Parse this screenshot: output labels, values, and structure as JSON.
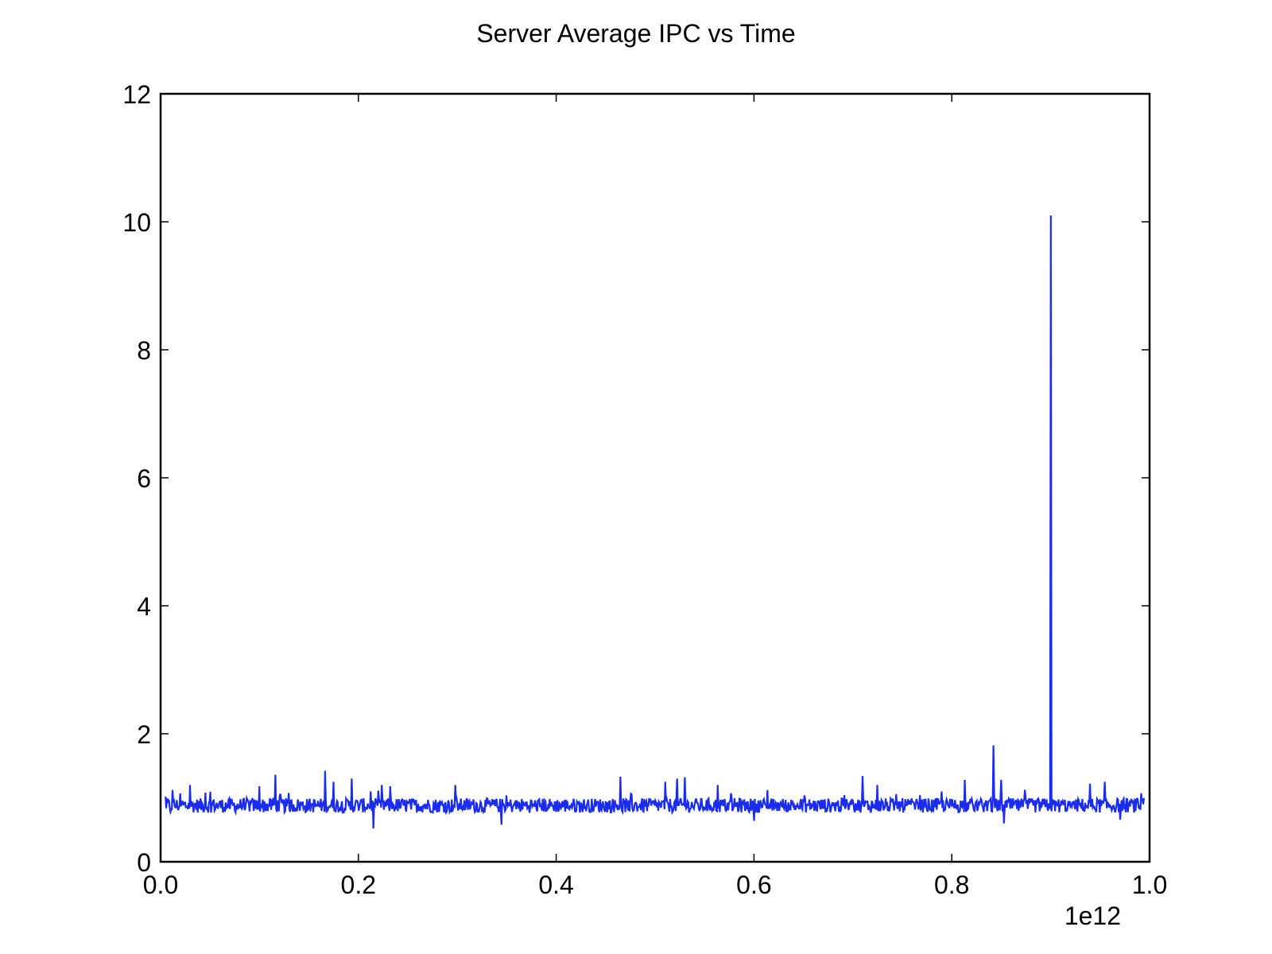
{
  "chart_data": {
    "type": "line",
    "title": "Server Average IPC vs Time",
    "xlabel": "",
    "ylabel": "",
    "x_offset_label": "1e12",
    "xlim": [
      0.0,
      1.0
    ],
    "ylim": [
      0,
      12
    ],
    "x_ticks": [
      "0.0",
      "0.2",
      "0.4",
      "0.6",
      "0.8",
      "1.0"
    ],
    "y_ticks": [
      "0",
      "2",
      "4",
      "6",
      "8",
      "10",
      "12"
    ],
    "grid": false,
    "legend": "none",
    "colors": {
      "series": "#1a2cf0",
      "axes": "#000000"
    },
    "series": [
      {
        "baseline": 0.88,
        "noise_range": [
          0.75,
          1.0
        ],
        "x_range": [
          0.005,
          0.995
        ],
        "spikes": [
          {
            "x": 0.005,
            "y": 1.02
          },
          {
            "x": 0.012,
            "y": 1.12
          },
          {
            "x": 0.03,
            "y": 1.2
          },
          {
            "x": 0.045,
            "y": 1.08
          },
          {
            "x": 0.1,
            "y": 1.18
          },
          {
            "x": 0.116,
            "y": 1.36
          },
          {
            "x": 0.166,
            "y": 1.42
          },
          {
            "x": 0.175,
            "y": 1.25
          },
          {
            "x": 0.193,
            "y": 1.3
          },
          {
            "x": 0.212,
            "y": 1.1
          },
          {
            "x": 0.224,
            "y": 1.2
          },
          {
            "x": 0.232,
            "y": 1.18
          },
          {
            "x": 0.298,
            "y": 1.2
          },
          {
            "x": 0.345,
            "y": 1.12
          },
          {
            "x": 0.465,
            "y": 1.33
          },
          {
            "x": 0.51,
            "y": 1.25
          },
          {
            "x": 0.522,
            "y": 1.3
          },
          {
            "x": 0.53,
            "y": 1.32
          },
          {
            "x": 0.563,
            "y": 1.2
          },
          {
            "x": 0.6,
            "y": 1.3
          },
          {
            "x": 0.71,
            "y": 1.34
          },
          {
            "x": 0.725,
            "y": 1.2
          },
          {
            "x": 0.79,
            "y": 1.1
          },
          {
            "x": 0.813,
            "y": 1.28
          },
          {
            "x": 0.842,
            "y": 1.82
          },
          {
            "x": 0.85,
            "y": 1.28
          },
          {
            "x": 0.9,
            "y": 10.1
          },
          {
            "x": 0.94,
            "y": 1.22
          },
          {
            "x": 0.955,
            "y": 1.25
          }
        ],
        "dips": [
          {
            "x": 0.01,
            "y": 0.78
          },
          {
            "x": 0.215,
            "y": 0.52
          },
          {
            "x": 0.345,
            "y": 0.58
          },
          {
            "x": 0.6,
            "y": 0.64
          },
          {
            "x": 0.853,
            "y": 0.6
          },
          {
            "x": 0.97,
            "y": 0.66
          }
        ]
      }
    ]
  }
}
